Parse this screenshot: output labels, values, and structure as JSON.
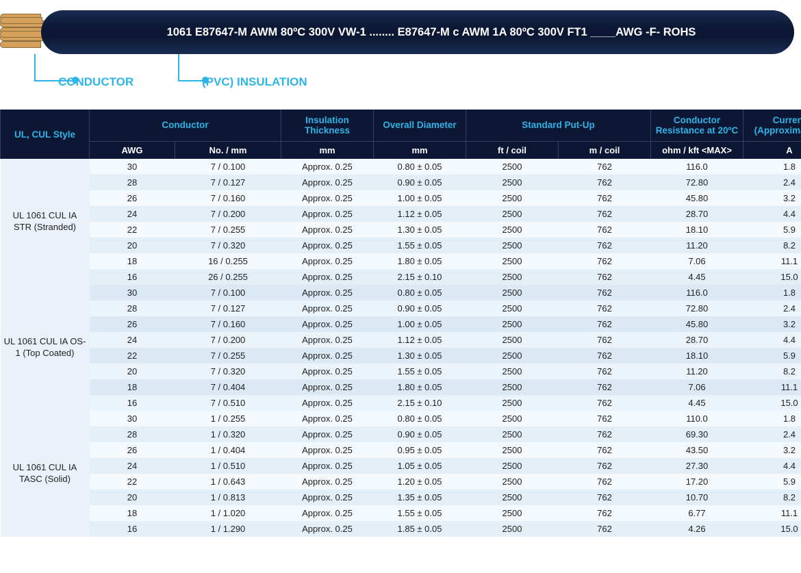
{
  "diagram": {
    "wire_marking": "1061 E87647-M AWM 80ºC 300V VW-1 ........ E87647-M c AWM 1A 80ºC 300V FT1 ____AWG   -F-   ROHS",
    "label_conductor": "CONDUCTOR",
    "label_insulation": "(PVC) INSULATION",
    "accent_color": "#2fb4e8",
    "wire_body_color": "#0b1733",
    "conductor_color": "#d4a05a"
  },
  "table": {
    "colors": {
      "header_bg": "#0b1733",
      "header_fg_accent": "#2fb4e8",
      "header_fg_units": "#ffffff",
      "row_alt_a": "#f4f9fd",
      "row_alt_b": "#e3eef7",
      "style_col_bg": "#eaf1f8"
    },
    "header1": {
      "style": "UL, CUL Style",
      "conductor": "Conductor",
      "insulation": "Insulation Thickness",
      "overall": "Overall Diameter",
      "putup": "Standard Put-Up",
      "resistance": "Conductor Resistance at 20ºC",
      "current": "Current (Approximately)"
    },
    "header2": {
      "awg": "AWG",
      "nomm": "No. / mm",
      "ins_mm": "mm",
      "od_mm": "mm",
      "ft": "ft / coil",
      "m": "m / coil",
      "ohm": "ohm / kft <MAX>",
      "amp": "A"
    },
    "groups": [
      {
        "style": "UL 1061 CUL IA STR (Stranded)",
        "rows": [
          {
            "awg": "30",
            "nomm": "7 / 0.100",
            "ins": "Approx. 0.25",
            "od": "0.80 ± 0.05",
            "ft": "2500",
            "m": "762",
            "ohm": "116.0",
            "amp": "1.8"
          },
          {
            "awg": "28",
            "nomm": "7 / 0.127",
            "ins": "Approx. 0.25",
            "od": "0.90 ± 0.05",
            "ft": "2500",
            "m": "762",
            "ohm": "72.80",
            "amp": "2.4"
          },
          {
            "awg": "26",
            "nomm": "7 / 0.160",
            "ins": "Approx. 0.25",
            "od": "1.00 ± 0.05",
            "ft": "2500",
            "m": "762",
            "ohm": "45.80",
            "amp": "3.2"
          },
          {
            "awg": "24",
            "nomm": "7 / 0.200",
            "ins": "Approx. 0.25",
            "od": "1.12 ± 0.05",
            "ft": "2500",
            "m": "762",
            "ohm": "28.70",
            "amp": "4.4"
          },
          {
            "awg": "22",
            "nomm": "7 / 0.255",
            "ins": "Approx. 0.25",
            "od": "1.30 ± 0.05",
            "ft": "2500",
            "m": "762",
            "ohm": "18.10",
            "amp": "5.9"
          },
          {
            "awg": "20",
            "nomm": "7 / 0.320",
            "ins": "Approx. 0.25",
            "od": "1.55 ± 0.05",
            "ft": "2500",
            "m": "762",
            "ohm": "11.20",
            "amp": "8.2"
          },
          {
            "awg": "18",
            "nomm": "16 / 0.255",
            "ins": "Approx. 0.25",
            "od": "1.80 ± 0.05",
            "ft": "2500",
            "m": "762",
            "ohm": "7.06",
            "amp": "11.1"
          },
          {
            "awg": "16",
            "nomm": "26 / 0.255",
            "ins": "Approx. 0.25",
            "od": "2.15 ± 0.10",
            "ft": "2500",
            "m": "762",
            "ohm": "4.45",
            "amp": "15.0"
          }
        ]
      },
      {
        "style": "UL 1061 CUL IA OS-1 (Top Coated)",
        "rows": [
          {
            "awg": "30",
            "nomm": "7 / 0.100",
            "ins": "Approx. 0.25",
            "od": "0.80 ± 0.05",
            "ft": "2500",
            "m": "762",
            "ohm": "116.0",
            "amp": "1.8"
          },
          {
            "awg": "28",
            "nomm": "7 / 0.127",
            "ins": "Approx. 0.25",
            "od": "0.90 ± 0.05",
            "ft": "2500",
            "m": "762",
            "ohm": "72.80",
            "amp": "2.4"
          },
          {
            "awg": "26",
            "nomm": "7 / 0.160",
            "ins": "Approx. 0.25",
            "od": "1.00 ± 0.05",
            "ft": "2500",
            "m": "762",
            "ohm": "45.80",
            "amp": "3.2"
          },
          {
            "awg": "24",
            "nomm": "7 / 0.200",
            "ins": "Approx. 0.25",
            "od": "1.12 ± 0.05",
            "ft": "2500",
            "m": "762",
            "ohm": "28.70",
            "amp": "4.4"
          },
          {
            "awg": "22",
            "nomm": "7 / 0.255",
            "ins": "Approx. 0.25",
            "od": "1.30 ± 0.05",
            "ft": "2500",
            "m": "762",
            "ohm": "18.10",
            "amp": "5.9"
          },
          {
            "awg": "20",
            "nomm": "7 / 0.320",
            "ins": "Approx. 0.25",
            "od": "1.55 ± 0.05",
            "ft": "2500",
            "m": "762",
            "ohm": "11.20",
            "amp": "8.2"
          },
          {
            "awg": "18",
            "nomm": "7 / 0.404",
            "ins": "Approx. 0.25",
            "od": "1.80 ± 0.05",
            "ft": "2500",
            "m": "762",
            "ohm": "7.06",
            "amp": "11.1"
          },
          {
            "awg": "16",
            "nomm": "7 / 0.510",
            "ins": "Approx. 0.25",
            "od": "2.15 ± 0.10",
            "ft": "2500",
            "m": "762",
            "ohm": "4.45",
            "amp": "15.0"
          }
        ]
      },
      {
        "style": "UL 1061 CUL IA TASC (Solid)",
        "rows": [
          {
            "awg": "30",
            "nomm": "1 / 0.255",
            "ins": "Approx. 0.25",
            "od": "0.80 ± 0.05",
            "ft": "2500",
            "m": "762",
            "ohm": "110.0",
            "amp": "1.8"
          },
          {
            "awg": "28",
            "nomm": "1 / 0.320",
            "ins": "Approx. 0.25",
            "od": "0.90 ± 0.05",
            "ft": "2500",
            "m": "762",
            "ohm": "69.30",
            "amp": "2.4"
          },
          {
            "awg": "26",
            "nomm": "1 / 0.404",
            "ins": "Approx. 0.25",
            "od": "0.95 ± 0.05",
            "ft": "2500",
            "m": "762",
            "ohm": "43.50",
            "amp": "3.2"
          },
          {
            "awg": "24",
            "nomm": "1 / 0.510",
            "ins": "Approx. 0.25",
            "od": "1.05 ± 0.05",
            "ft": "2500",
            "m": "762",
            "ohm": "27.30",
            "amp": "4.4"
          },
          {
            "awg": "22",
            "nomm": "1 / 0.643",
            "ins": "Approx. 0.25",
            "od": "1.20 ± 0.05",
            "ft": "2500",
            "m": "762",
            "ohm": "17.20",
            "amp": "5.9"
          },
          {
            "awg": "20",
            "nomm": "1 / 0.813",
            "ins": "Approx. 0.25",
            "od": "1.35 ± 0.05",
            "ft": "2500",
            "m": "762",
            "ohm": "10.70",
            "amp": "8.2"
          },
          {
            "awg": "18",
            "nomm": "1 / 1.020",
            "ins": "Approx. 0.25",
            "od": "1.55 ± 0.05",
            "ft": "2500",
            "m": "762",
            "ohm": "6.77",
            "amp": "11.1"
          },
          {
            "awg": "16",
            "nomm": "1 / 1.290",
            "ins": "Approx. 0.25",
            "od": "1.85 ± 0.05",
            "ft": "2500",
            "m": "762",
            "ohm": "4.26",
            "amp": "15.0"
          }
        ]
      }
    ]
  }
}
